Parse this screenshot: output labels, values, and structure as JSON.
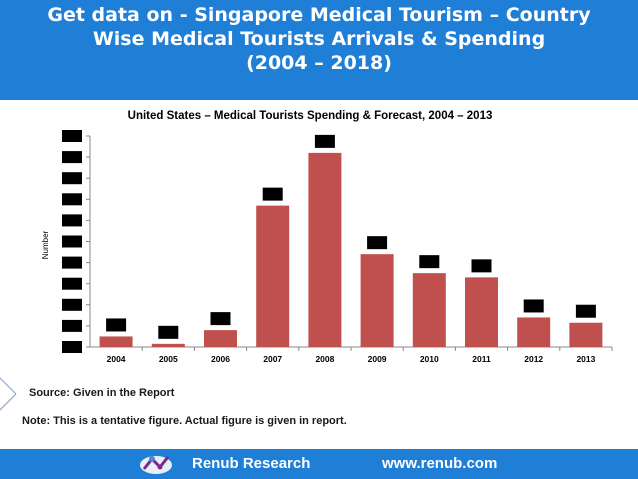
{
  "header": {
    "line1": "Get data on - Singapore Medical Tourism – Country",
    "line2": "Wise Medical Tourists Arrivals & Spending",
    "line3": "(2004 – 2018)"
  },
  "chart_data": {
    "type": "bar",
    "title": "United States – Medical Tourists Spending & Forecast, 2004 – 2013",
    "xlabel": "",
    "ylabel": "Number",
    "categories": [
      "2004",
      "2005",
      "2006",
      "2007",
      "2008",
      "2009",
      "2010",
      "2011",
      "2012",
      "2013"
    ],
    "values": [
      5,
      1.5,
      8,
      67,
      92,
      44,
      35,
      33,
      14,
      11.5
    ],
    "ylim": [
      0,
      100
    ],
    "bar_color": "#c0504d",
    "data_labels_redacted": true
  },
  "source_text": "Source: Given in the Report",
  "note_text": "Note: This is a tentative figure. Actual figure is given in report.",
  "footer": {
    "brand": "Renub Research",
    "website": "www.renub.com"
  },
  "colors": {
    "banner": "#1f7ed6",
    "bar": "#c0504d",
    "redaction": "#000000"
  }
}
